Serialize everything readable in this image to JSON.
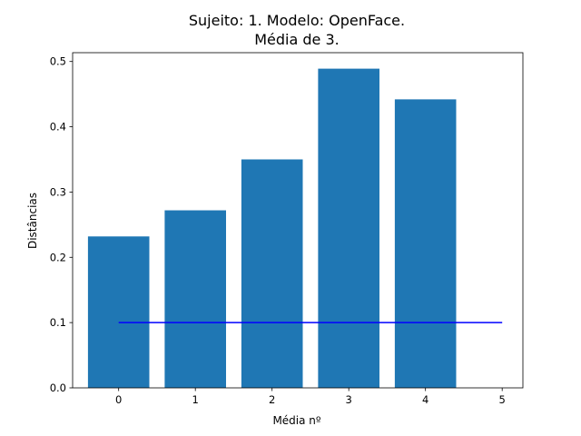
{
  "chart_data": {
    "type": "bar",
    "title_line1": "Sujeito: 1. Modelo: OpenFace.",
    "title_line2": "Média de 3.",
    "xlabel": "Média nº",
    "ylabel": "Distâncias",
    "categories": [
      0,
      1,
      2,
      3,
      4
    ],
    "values": [
      0.232,
      0.272,
      0.35,
      0.489,
      0.442
    ],
    "bar_color": "#1f77b4",
    "threshold": {
      "x": [
        0,
        5
      ],
      "y": [
        0.1,
        0.1
      ],
      "color": "#0000ff"
    },
    "xlim": [
      -0.6,
      5.27
    ],
    "ylim": [
      0,
      0.5135
    ],
    "xticks": [
      "0",
      "1",
      "2",
      "3",
      "4",
      "5"
    ],
    "yticks": [
      "0.0",
      "0.1",
      "0.2",
      "0.3",
      "0.4",
      "0.5"
    ],
    "grid": false,
    "legend": "none"
  }
}
